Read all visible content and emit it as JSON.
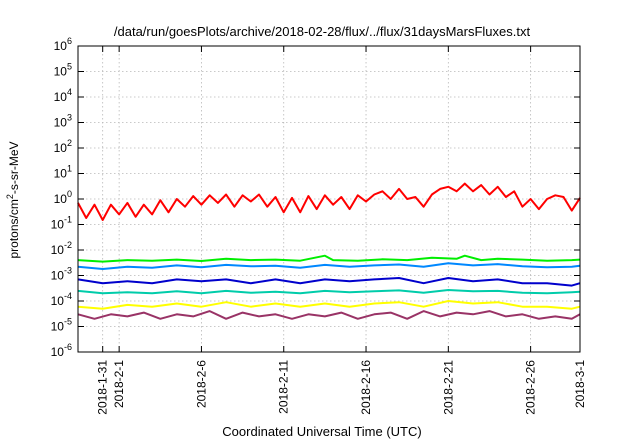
{
  "chart_data": {
    "type": "line",
    "title": "/data/run/goesPlots/archive/2018-02-28/flux/../flux/31daysMarsFluxes.txt",
    "xlabel": "Coordinated Universal Time (UTC)",
    "ylabel": {
      "before": "protons/cm",
      "sup": "2",
      "after": "-s-sr-MeV"
    },
    "y_scale": "log",
    "ylim": [
      1e-06,
      1000000.0
    ],
    "y_ticks": [
      {
        "value": 1e-06,
        "base": "10",
        "exp": "-6"
      },
      {
        "value": 1e-05,
        "base": "10",
        "exp": "-5"
      },
      {
        "value": 0.0001,
        "base": "10",
        "exp": "-4"
      },
      {
        "value": 0.001,
        "base": "10",
        "exp": "-3"
      },
      {
        "value": 0.01,
        "base": "10",
        "exp": "-2"
      },
      {
        "value": 0.1,
        "base": "10",
        "exp": "-1"
      },
      {
        "value": 1,
        "base": "10",
        "exp": "0"
      },
      {
        "value": 10,
        "base": "10",
        "exp": "1"
      },
      {
        "value": 100,
        "base": "10",
        "exp": "2"
      },
      {
        "value": 1000,
        "base": "10",
        "exp": "3"
      },
      {
        "value": 10000,
        "base": "10",
        "exp": "4"
      },
      {
        "value": 100000,
        "base": "10",
        "exp": "5"
      },
      {
        "value": 1000000,
        "base": "10",
        "exp": "6"
      }
    ],
    "xlim": [
      "2018-01-29T12:00",
      "2018-03-01T00:00"
    ],
    "x_ticks": [
      {
        "date": "2018-01-31",
        "label": "2018-1-31"
      },
      {
        "date": "2018-02-01",
        "label": "2018-2-1"
      },
      {
        "date": "2018-02-06",
        "label": "2018-2-6"
      },
      {
        "date": "2018-02-11",
        "label": "2018-2-11"
      },
      {
        "date": "2018-02-16",
        "label": "2018-2-16"
      },
      {
        "date": "2018-02-21",
        "label": "2018-2-21"
      },
      {
        "date": "2018-02-26",
        "label": "2018-2-26"
      },
      {
        "date": "2018-03-01",
        "label": "2018-3-1"
      }
    ],
    "grid": true,
    "legend": "none",
    "series": [
      {
        "color": "#ff0000",
        "x": [
          "2018-01-29T12:00",
          "2018-01-30T00:00",
          "2018-01-30T12:00",
          "2018-01-31T00:00",
          "2018-01-31T12:00",
          "2018-02-01T00:00",
          "2018-02-01T12:00",
          "2018-02-02T00:00",
          "2018-02-02T12:00",
          "2018-02-03T00:00",
          "2018-02-03T12:00",
          "2018-02-04T00:00",
          "2018-02-04T12:00",
          "2018-02-05T00:00",
          "2018-02-05T12:00",
          "2018-02-06T00:00",
          "2018-02-06T12:00",
          "2018-02-07T00:00",
          "2018-02-07T12:00",
          "2018-02-08T00:00",
          "2018-02-08T12:00",
          "2018-02-09T00:00",
          "2018-02-09T12:00",
          "2018-02-10T00:00",
          "2018-02-10T12:00",
          "2018-02-11T00:00",
          "2018-02-11T12:00",
          "2018-02-12T00:00",
          "2018-02-12T12:00",
          "2018-02-13T00:00",
          "2018-02-13T12:00",
          "2018-02-14T00:00",
          "2018-02-14T12:00",
          "2018-02-15T00:00",
          "2018-02-15T12:00",
          "2018-02-16T00:00",
          "2018-02-16T12:00",
          "2018-02-17T00:00",
          "2018-02-17T12:00",
          "2018-02-18T00:00",
          "2018-02-18T12:00",
          "2018-02-19T00:00",
          "2018-02-19T12:00",
          "2018-02-20T00:00",
          "2018-02-20T12:00",
          "2018-02-21T00:00",
          "2018-02-21T12:00",
          "2018-02-22T00:00",
          "2018-02-22T12:00",
          "2018-02-23T00:00",
          "2018-02-23T12:00",
          "2018-02-24T00:00",
          "2018-02-24T12:00",
          "2018-02-25T00:00",
          "2018-02-25T12:00",
          "2018-02-26T00:00",
          "2018-02-26T12:00",
          "2018-02-27T00:00",
          "2018-02-27T12:00",
          "2018-02-28T00:00",
          "2018-02-28T12:00",
          "2018-03-01T00:00"
        ],
        "y": [
          0.7,
          0.18,
          0.6,
          0.15,
          0.6,
          0.25,
          0.7,
          0.2,
          0.6,
          0.25,
          0.9,
          0.3,
          1.0,
          0.5,
          1.3,
          0.6,
          1.4,
          0.7,
          1.5,
          0.5,
          1.4,
          0.8,
          1.5,
          0.5,
          1.2,
          0.3,
          1.1,
          0.3,
          1.3,
          0.4,
          1.4,
          0.6,
          1.2,
          0.4,
          1.4,
          0.8,
          1.5,
          2.0,
          1.0,
          2.5,
          1.0,
          1.2,
          0.5,
          1.5,
          2.5,
          3.0,
          2.0,
          4.0,
          2.0,
          3.5,
          1.5,
          3.0,
          1.2,
          2.0,
          0.5,
          1.0,
          0.4,
          1.0,
          1.4,
          1.2,
          0.35,
          1.1
        ]
      },
      {
        "color": "#00ee00",
        "x": [
          "2018-01-29T12:00",
          "2018-01-31T00:00",
          "2018-02-01T12:00",
          "2018-02-03T00:00",
          "2018-02-04T12:00",
          "2018-02-06T00:00",
          "2018-02-07T12:00",
          "2018-02-09T00:00",
          "2018-02-10T12:00",
          "2018-02-12T00:00",
          "2018-02-13T12:00",
          "2018-02-14T00:00",
          "2018-02-15T12:00",
          "2018-02-17T00:00",
          "2018-02-18T12:00",
          "2018-02-20T00:00",
          "2018-02-21T12:00",
          "2018-02-22T00:00",
          "2018-02-23T00:00",
          "2018-02-24T00:00",
          "2018-02-25T12:00",
          "2018-02-27T00:00",
          "2018-02-28T12:00",
          "2018-03-01T00:00"
        ],
        "y": [
          0.004,
          0.0035,
          0.004,
          0.0038,
          0.0042,
          0.0037,
          0.0045,
          0.004,
          0.0042,
          0.0038,
          0.006,
          0.004,
          0.0038,
          0.0043,
          0.004,
          0.005,
          0.0045,
          0.006,
          0.004,
          0.0045,
          0.0042,
          0.0038,
          0.004,
          0.0042
        ]
      },
      {
        "color": "#0088ff",
        "x": [
          "2018-01-29T12:00",
          "2018-01-31T00:00",
          "2018-02-01T12:00",
          "2018-02-03T00:00",
          "2018-02-04T12:00",
          "2018-02-06T00:00",
          "2018-02-07T12:00",
          "2018-02-09T00:00",
          "2018-02-10T12:00",
          "2018-02-12T00:00",
          "2018-02-13T12:00",
          "2018-02-15T00:00",
          "2018-02-16T12:00",
          "2018-02-18T00:00",
          "2018-02-19T12:00",
          "2018-02-21T00:00",
          "2018-02-22T12:00",
          "2018-02-24T00:00",
          "2018-02-25T12:00",
          "2018-02-27T00:00",
          "2018-02-28T12:00",
          "2018-03-01T00:00"
        ],
        "y": [
          0.0022,
          0.0018,
          0.0022,
          0.002,
          0.0025,
          0.0021,
          0.0026,
          0.0023,
          0.0024,
          0.002,
          0.0026,
          0.0022,
          0.0025,
          0.0027,
          0.0022,
          0.003,
          0.0025,
          0.0028,
          0.0023,
          0.0021,
          0.0022,
          0.0024
        ]
      },
      {
        "color": "#0000cc",
        "x": [
          "2018-01-29T12:00",
          "2018-01-31T00:00",
          "2018-02-01T12:00",
          "2018-02-03T00:00",
          "2018-02-04T12:00",
          "2018-02-06T00:00",
          "2018-02-07T12:00",
          "2018-02-09T00:00",
          "2018-02-10T12:00",
          "2018-02-12T00:00",
          "2018-02-13T12:00",
          "2018-02-15T00:00",
          "2018-02-16T12:00",
          "2018-02-18T00:00",
          "2018-02-19T12:00",
          "2018-02-21T00:00",
          "2018-02-22T12:00",
          "2018-02-24T00:00",
          "2018-02-25T12:00",
          "2018-02-27T00:00",
          "2018-02-28T12:00",
          "2018-03-01T00:00"
        ],
        "y": [
          0.0007,
          0.0005,
          0.0006,
          0.0005,
          0.0007,
          0.0006,
          0.0007,
          0.0005,
          0.0007,
          0.0005,
          0.0007,
          0.0006,
          0.0007,
          0.0008,
          0.0005,
          0.0008,
          0.0006,
          0.0007,
          0.0005,
          0.0005,
          0.0004,
          0.0005
        ]
      },
      {
        "color": "#00ccaa",
        "x": [
          "2018-01-29T12:00",
          "2018-01-31T00:00",
          "2018-02-01T12:00",
          "2018-02-03T00:00",
          "2018-02-04T12:00",
          "2018-02-06T00:00",
          "2018-02-07T12:00",
          "2018-02-09T00:00",
          "2018-02-10T12:00",
          "2018-02-12T00:00",
          "2018-02-13T12:00",
          "2018-02-15T00:00",
          "2018-02-16T12:00",
          "2018-02-18T00:00",
          "2018-02-19T12:00",
          "2018-02-21T00:00",
          "2018-02-22T12:00",
          "2018-02-24T00:00",
          "2018-02-25T12:00",
          "2018-02-27T00:00",
          "2018-02-28T12:00",
          "2018-03-01T00:00"
        ],
        "y": [
          0.00025,
          0.0002,
          0.00022,
          0.0002,
          0.00024,
          0.0002,
          0.00025,
          0.00021,
          0.00023,
          0.0002,
          0.00025,
          0.00022,
          0.00024,
          0.00026,
          0.00021,
          0.00027,
          0.00024,
          0.00025,
          0.00021,
          0.0002,
          0.00022,
          0.00023
        ]
      },
      {
        "color": "#ffff00",
        "x": [
          "2018-01-29T12:00",
          "2018-01-31T00:00",
          "2018-02-01T12:00",
          "2018-02-03T00:00",
          "2018-02-04T12:00",
          "2018-02-06T00:00",
          "2018-02-07T12:00",
          "2018-02-09T00:00",
          "2018-02-10T12:00",
          "2018-02-12T00:00",
          "2018-02-13T12:00",
          "2018-02-15T00:00",
          "2018-02-16T12:00",
          "2018-02-18T00:00",
          "2018-02-19T12:00",
          "2018-02-21T00:00",
          "2018-02-22T12:00",
          "2018-02-24T00:00",
          "2018-02-25T12:00",
          "2018-02-27T00:00",
          "2018-02-28T12:00",
          "2018-03-01T00:00"
        ],
        "y": [
          6e-05,
          5e-05,
          7e-05,
          6e-05,
          8e-05,
          6e-05,
          9e-05,
          6e-05,
          8e-05,
          6e-05,
          8e-05,
          6e-05,
          8e-05,
          9e-05,
          6e-05,
          0.0001,
          8e-05,
          9e-05,
          6e-05,
          6e-05,
          5e-05,
          6e-05
        ]
      },
      {
        "color": "#993366",
        "x": [
          "2018-01-29T12:00",
          "2018-01-30T12:00",
          "2018-01-31T12:00",
          "2018-02-01T12:00",
          "2018-02-02T12:00",
          "2018-02-03T12:00",
          "2018-02-04T12:00",
          "2018-02-05T12:00",
          "2018-02-06T12:00",
          "2018-02-07T12:00",
          "2018-02-08T12:00",
          "2018-02-09T12:00",
          "2018-02-10T12:00",
          "2018-02-11T12:00",
          "2018-02-12T12:00",
          "2018-02-13T12:00",
          "2018-02-14T12:00",
          "2018-02-15T12:00",
          "2018-02-16T12:00",
          "2018-02-17T12:00",
          "2018-02-18T12:00",
          "2018-02-19T12:00",
          "2018-02-20T12:00",
          "2018-02-21T12:00",
          "2018-02-22T12:00",
          "2018-02-23T12:00",
          "2018-02-24T12:00",
          "2018-02-25T12:00",
          "2018-02-26T12:00",
          "2018-02-27T12:00",
          "2018-02-28T12:00",
          "2018-03-01T00:00"
        ],
        "y": [
          3e-05,
          2e-05,
          3e-05,
          2.5e-05,
          3.5e-05,
          2e-05,
          3e-05,
          2.5e-05,
          4e-05,
          2e-05,
          3.5e-05,
          2.5e-05,
          3e-05,
          2e-05,
          3e-05,
          2.5e-05,
          3.5e-05,
          2e-05,
          3e-05,
          3.5e-05,
          2e-05,
          4e-05,
          2.5e-05,
          3.5e-05,
          3e-05,
          4e-05,
          2.5e-05,
          3e-05,
          2e-05,
          2.5e-05,
          2e-05,
          3e-05
        ]
      }
    ]
  }
}
